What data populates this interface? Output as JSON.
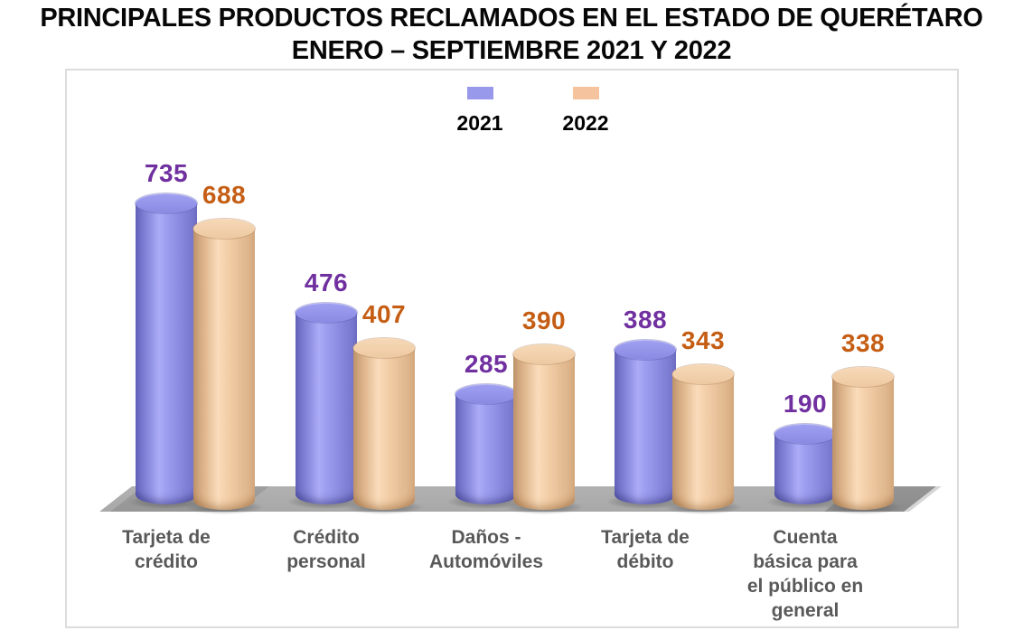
{
  "title": {
    "line1": "PRINCIPALES PRODUCTOS RECLAMADOS EN EL ESTADO DE QUERÉTARO",
    "line2": "ENERO – SEPTIEMBRE 2021 Y 2022"
  },
  "legend": {
    "items": [
      {
        "label": "2021",
        "color": "#9999ec"
      },
      {
        "label": "2022",
        "color": "#f5c49e"
      }
    ]
  },
  "chart_data": {
    "type": "bar",
    "style": "3d-cylinder",
    "title": "PRINCIPALES PRODUCTOS RECLAMADOS EN EL ESTADO DE QUERÉTARO ENERO – SEPTIEMBRE 2021 Y 2022",
    "categories": [
      "Tarjeta de crédito",
      "Crédito personal",
      "Daños - Automóviles",
      "Tarjeta de débito",
      "Cuenta básica para el público en general"
    ],
    "category_lines": [
      [
        "Tarjeta de",
        "crédito"
      ],
      [
        "Crédito",
        "personal"
      ],
      [
        "Daños -",
        "Automóviles"
      ],
      [
        "Tarjeta de",
        "débito"
      ],
      [
        "Cuenta",
        "básica para",
        "el público en",
        "general"
      ]
    ],
    "series": [
      {
        "name": "2021",
        "values": [
          735,
          476,
          285,
          388,
          190
        ],
        "bar_color": "#8c8ce0",
        "label_color": "#7030a0"
      },
      {
        "name": "2022",
        "values": [
          688,
          407,
          390,
          343,
          338
        ],
        "bar_color": "#f2c8a2",
        "label_color": "#c55e14"
      }
    ],
    "value_labels": true,
    "grid": false,
    "ylim": [
      0,
      800
    ],
    "legend_position": "top-center",
    "floor_color": "#acacac"
  }
}
